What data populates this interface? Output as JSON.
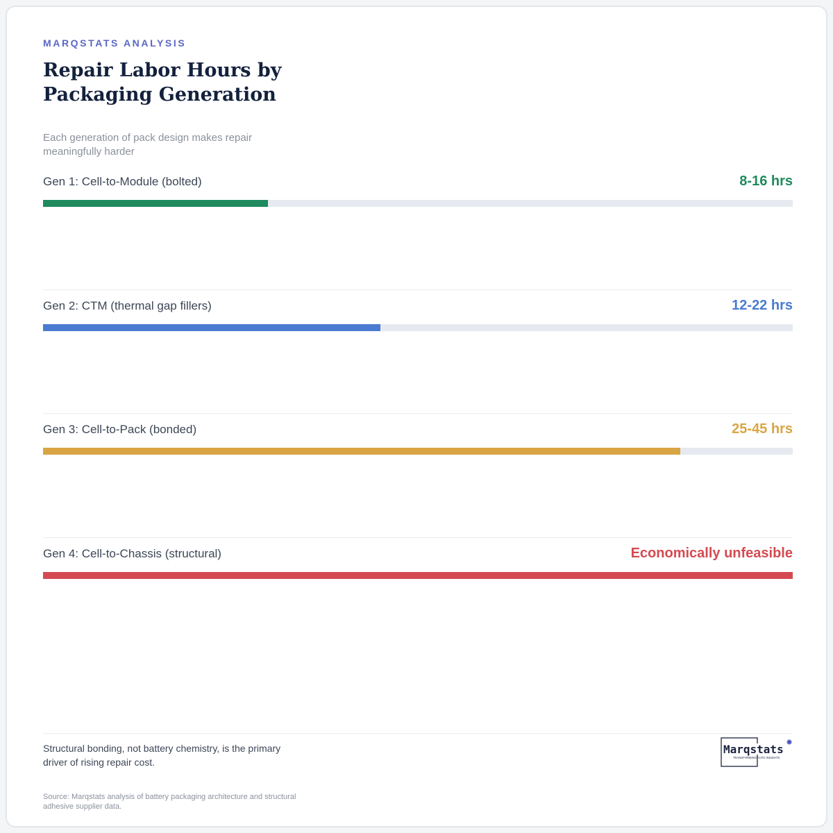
{
  "brand": {
    "eyebrow": "MARQSTATS ANALYSIS",
    "logo_text": "Marqstats",
    "logo_tagline": "TRANSFORMING AUTO INSIGHTS"
  },
  "colors": {
    "eyebrow": "#5a67c4",
    "gen1": "#1f8a5e",
    "gen2": "#4a7bd0",
    "gen3": "#d9a544",
    "gen4": "#d44a51",
    "track": "#e6eaf0"
  },
  "chart_data": {
    "type": "bar",
    "orientation": "horizontal",
    "title": "Repair Labor Hours by Packaging Generation",
    "subtitle": "Each generation of pack design makes repair meaningfully harder",
    "categories": [
      "Gen 1: Cell-to-Module (bolted)",
      "Gen 2: CTM (thermal gap fillers)",
      "Gen 3: Cell-to-Pack (bonded)",
      "Gen 4: Cell-to-Chassis (structural)"
    ],
    "value_labels": [
      "8-16 hrs",
      "12-22 hrs",
      "25-45 hrs",
      "Economically unfeasible"
    ],
    "values": [
      0.3,
      0.45,
      0.85,
      1.0
    ],
    "value_unit": "fraction of full bar",
    "grid": false,
    "legend": "none"
  },
  "footer": {
    "takeaway": "Structural bonding, not battery chemistry, is the primary driver of rising repair cost.",
    "source": "Source: Marqstats analysis of battery packaging architecture and structural adhesive supplier data."
  }
}
